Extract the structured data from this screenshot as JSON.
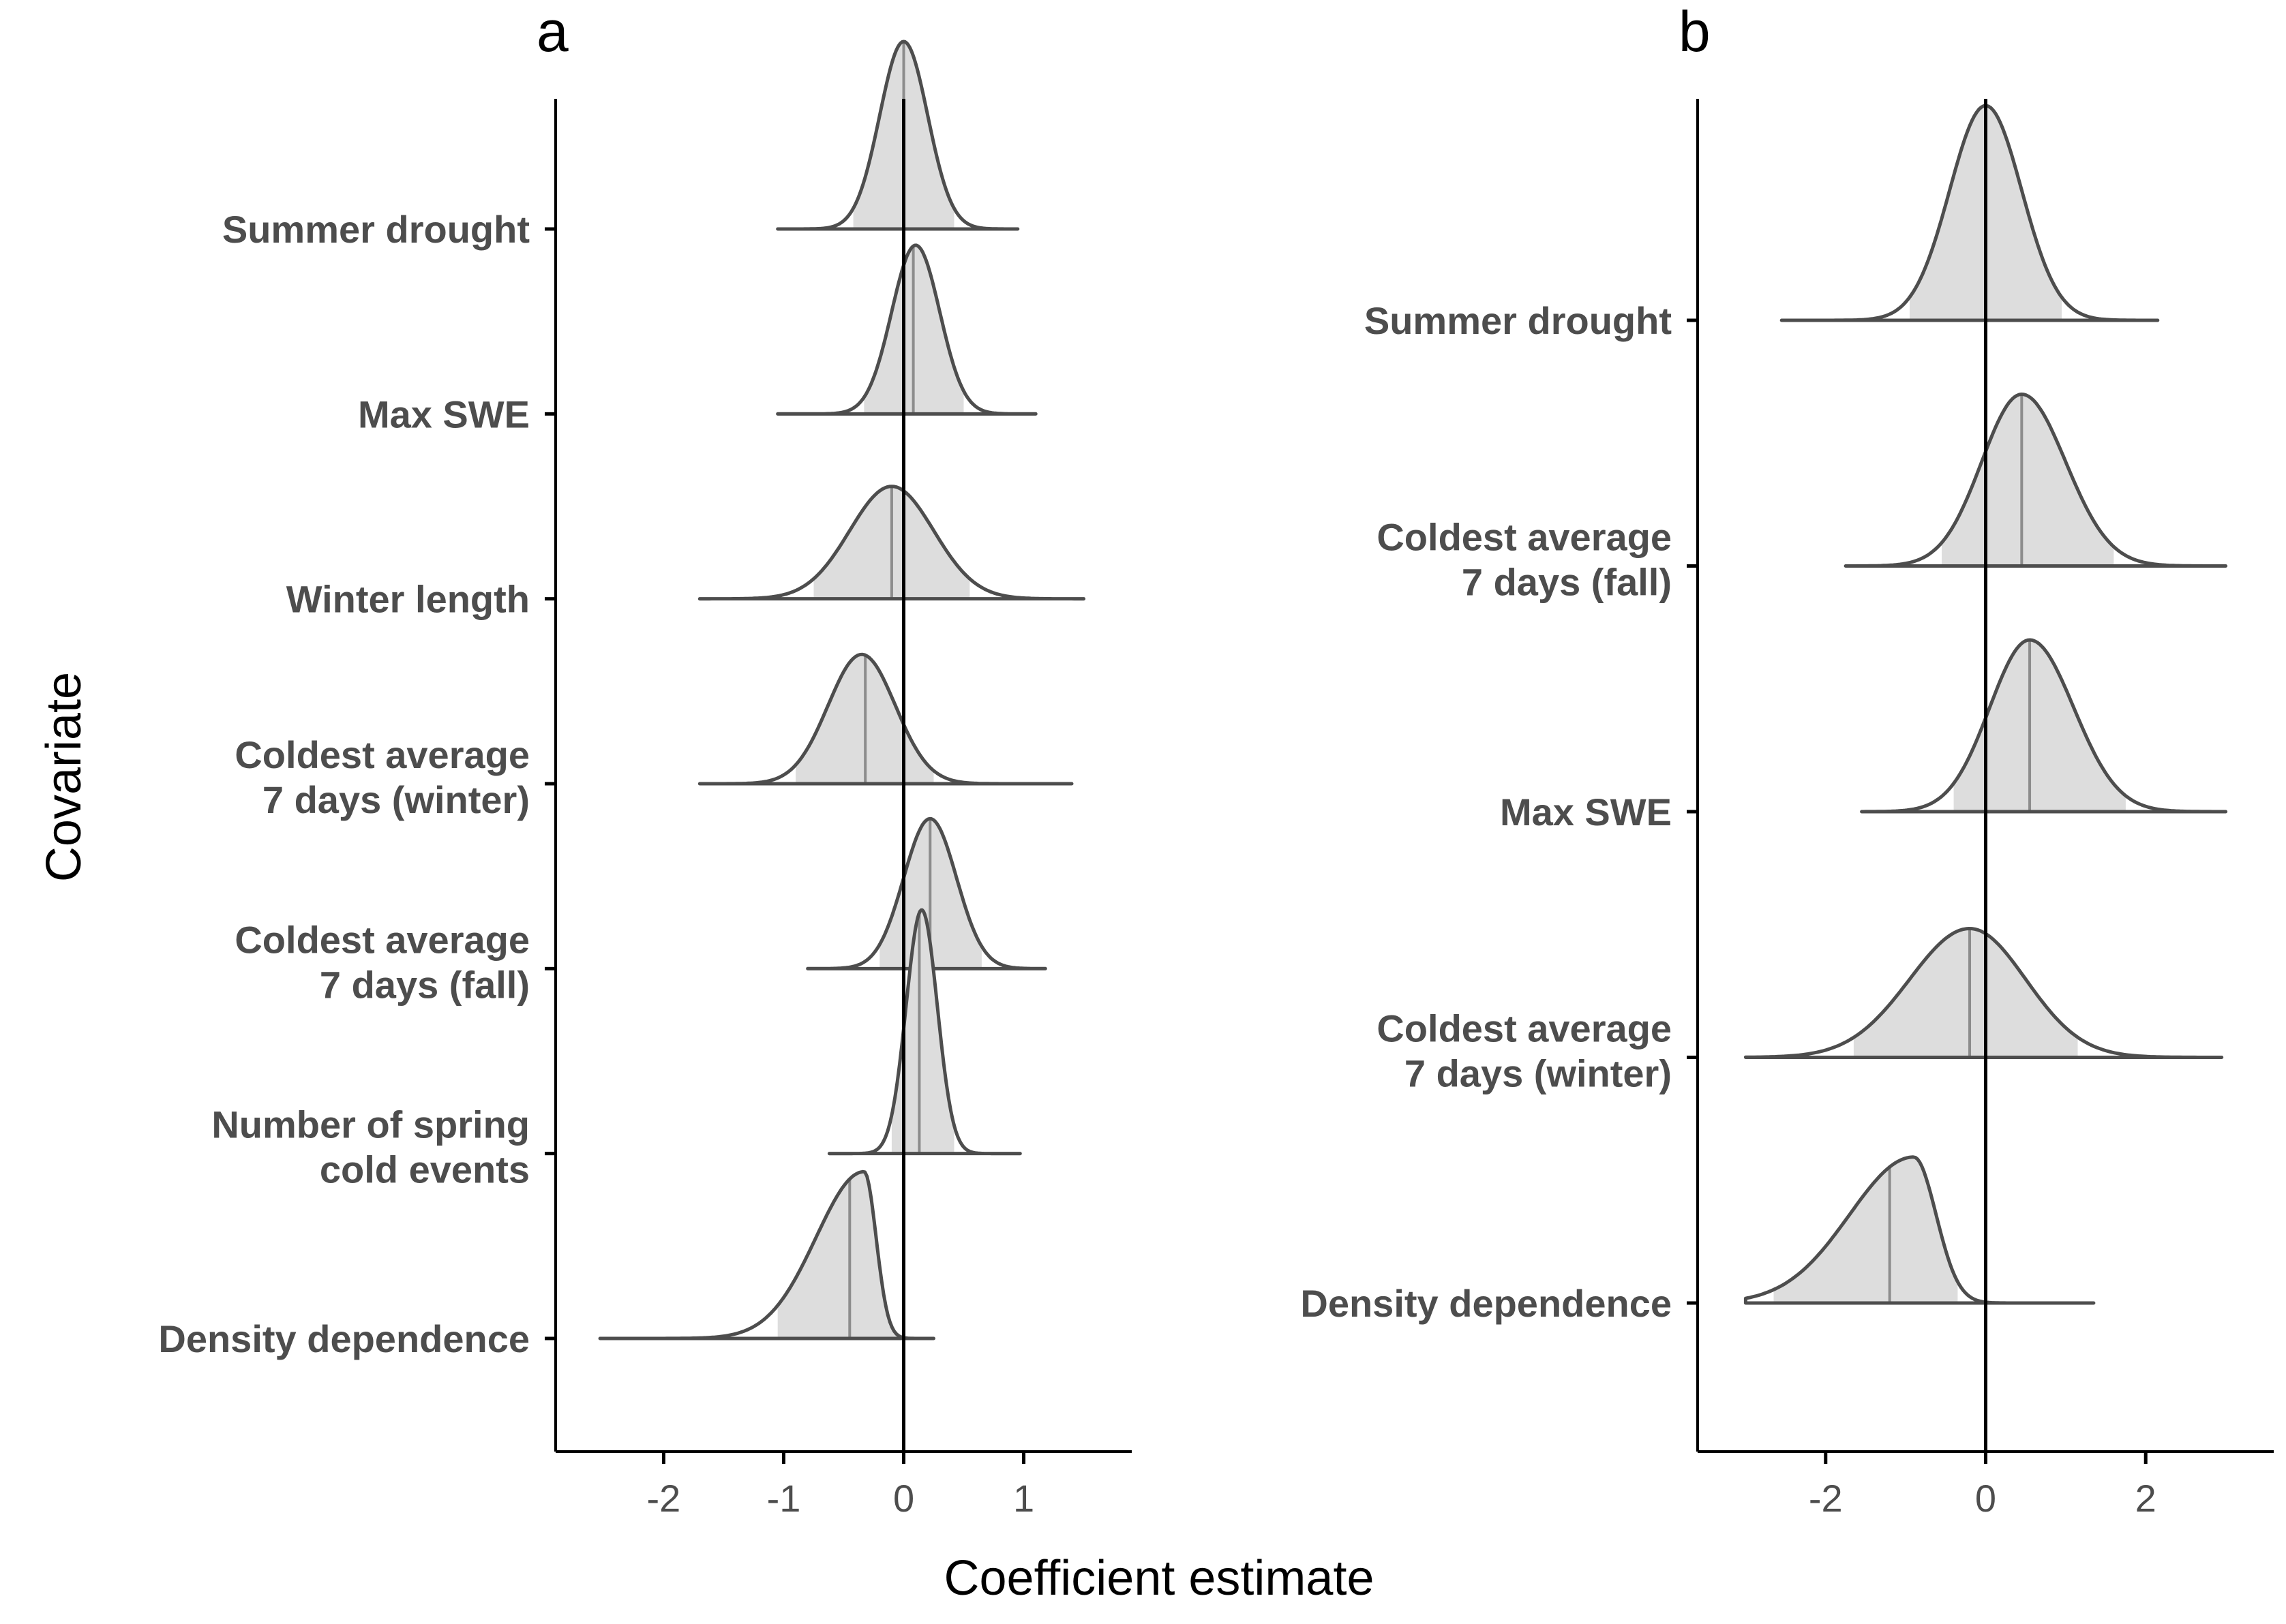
{
  "figure": {
    "xlabel": "Coefficient estimate",
    "ylabel": "Covariate"
  },
  "chart_data": [
    {
      "panel": "a",
      "type": "ridgeline",
      "xlabel": "Coefficient estimate",
      "ylabel": "Covariate",
      "xlim": [
        -2.9,
        1.9
      ],
      "xticks": [
        -2,
        -1,
        0,
        1
      ],
      "reference_line": 0,
      "series": [
        {
          "name": "Summer drought",
          "lines": [
            "Summer drought"
          ],
          "mode": 0.0,
          "left": -1.05,
          "right": 0.95,
          "sdL": 0.2,
          "sdR": 0.2,
          "q_low": -0.42,
          "median": 0.0,
          "q_high": 0.42,
          "height": 1.0
        },
        {
          "name": "Max SWE",
          "lines": [
            "Max SWE"
          ],
          "mode": 0.1,
          "left": -1.05,
          "right": 1.1,
          "sdL": 0.2,
          "sdR": 0.2,
          "q_low": -0.33,
          "median": 0.08,
          "q_high": 0.5,
          "height": 0.9
        },
        {
          "name": "Winter length",
          "lines": [
            "Winter length"
          ],
          "mode": -0.1,
          "left": -1.7,
          "right": 1.5,
          "sdL": 0.35,
          "sdR": 0.35,
          "q_low": -0.75,
          "median": -0.1,
          "q_high": 0.55,
          "height": 0.6
        },
        {
          "name": "Coldest average 7 days (winter)",
          "lines": [
            "Coldest average",
            "7 days (winter)"
          ],
          "mode": -0.35,
          "left": -1.7,
          "right": 1.4,
          "sdL": 0.28,
          "sdR": 0.28,
          "q_low": -0.9,
          "median": -0.32,
          "q_high": 0.25,
          "height": 0.69
        },
        {
          "name": "Coldest average 7 days (fall)",
          "lines": [
            "Coldest average",
            "7 days (fall)"
          ],
          "mode": 0.22,
          "left": -0.8,
          "right": 1.18,
          "sdL": 0.22,
          "sdR": 0.22,
          "q_low": -0.2,
          "median": 0.22,
          "q_high": 0.65,
          "height": 0.8
        },
        {
          "name": "Number of spring cold events",
          "lines": [
            "Number of spring",
            "cold events"
          ],
          "mode": 0.15,
          "left": -0.62,
          "right": 0.97,
          "sdL": 0.13,
          "sdR": 0.13,
          "q_low": -0.1,
          "median": 0.13,
          "q_high": 0.42,
          "height": 1.3
        },
        {
          "name": "Density dependence",
          "lines": [
            "Density dependence"
          ],
          "mode": -0.33,
          "left": -2.53,
          "right": 0.25,
          "sdL": 0.4,
          "sdR": 0.1,
          "q_low": -1.05,
          "median": -0.45,
          "q_high": -0.05,
          "height": 0.89
        }
      ]
    },
    {
      "panel": "b",
      "type": "ridgeline",
      "xlabel": "Coefficient estimate",
      "ylabel": "",
      "xlim": [
        -3.6,
        3.6
      ],
      "xticks": [
        -2,
        0,
        2
      ],
      "reference_line": 0,
      "series": [
        {
          "name": "Summer drought",
          "lines": [
            "Summer drought"
          ],
          "mode": 0.0,
          "left": -2.55,
          "right": 2.15,
          "sdL": 0.45,
          "sdR": 0.45,
          "q_low": -0.95,
          "median": 0.0,
          "q_high": 0.95,
          "height": 1.0
        },
        {
          "name": "Coldest average 7 days (fall)",
          "lines": [
            "Coldest average",
            "7 days (fall)"
          ],
          "mode": 0.45,
          "left": -1.75,
          "right": 3.0,
          "sdL": 0.5,
          "sdR": 0.55,
          "q_low": -0.55,
          "median": 0.45,
          "q_high": 1.6,
          "height": 0.8
        },
        {
          "name": "Max SWE",
          "lines": [
            "Max SWE"
          ],
          "mode": 0.55,
          "left": -1.55,
          "right": 3.0,
          "sdL": 0.5,
          "sdR": 0.55,
          "q_low": -0.4,
          "median": 0.55,
          "q_high": 1.75,
          "height": 0.8
        },
        {
          "name": "Coldest average 7 days (winter)",
          "lines": [
            "Coldest average",
            "7 days (winter)"
          ],
          "mode": -0.2,
          "left": -3.0,
          "right": 2.95,
          "sdL": 0.75,
          "sdR": 0.7,
          "q_low": -1.65,
          "median": -0.2,
          "q_high": 1.15,
          "height": 0.6
        },
        {
          "name": "Density dependence",
          "lines": [
            "Density dependence"
          ],
          "mode": -0.9,
          "left": -3.0,
          "right": 1.35,
          "sdL": 0.8,
          "sdR": 0.28,
          "q_low": -2.65,
          "median": -1.2,
          "q_high": -0.35,
          "height": 0.68
        }
      ]
    }
  ]
}
